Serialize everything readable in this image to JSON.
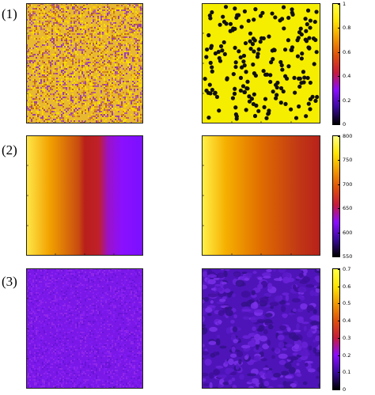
{
  "rows": [
    {
      "label": "(1)",
      "colorbar": {
        "min": 0,
        "max": 1,
        "ticks": [
          "0",
          "0.2",
          "0.4",
          "0.6",
          "0.8",
          "1"
        ]
      },
      "left_panel": "random-noise-map",
      "right_panel": "dot-pattern-map"
    },
    {
      "label": "(2)",
      "colorbar": {
        "min": 550,
        "max": 800,
        "ticks": [
          "550",
          "600",
          "650",
          "700",
          "750",
          "800"
        ]
      },
      "left_panel": "horizontal-gradient-map",
      "right_panel": "horizontal-gradient-map"
    },
    {
      "label": "(3)",
      "colorbar": {
        "min": 0,
        "max": 0.7,
        "ticks": [
          "0",
          "0.1",
          "0.2",
          "0.3",
          "0.4",
          "0.5",
          "0.6",
          "0.7"
        ]
      },
      "left_panel": "low-noise-map",
      "right_panel": "cellular-texture-map"
    }
  ],
  "colormap": [
    "#000000",
    "#3b0a9e",
    "#8a0cff",
    "#c71a3c",
    "#e0500a",
    "#f29a00",
    "#ffe600",
    "#ffff40"
  ]
}
